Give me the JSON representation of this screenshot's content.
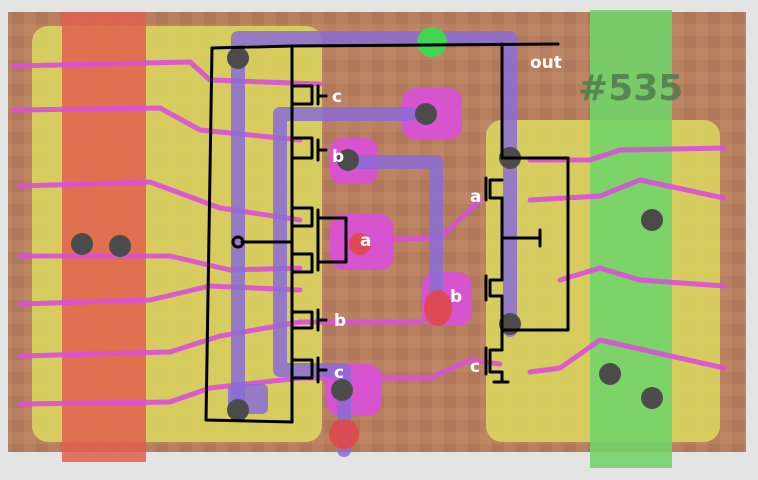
{
  "labels": {
    "output": "out",
    "part_number": "#535",
    "left_c_top": "c",
    "left_b_top": "b",
    "left_a": "a",
    "left_b_bottom": "b",
    "left_c_bottom": "c",
    "right_a": "a",
    "right_b": "b",
    "right_c": "c"
  },
  "colors": {
    "background": "#e4e4e4",
    "die": "#b9805f",
    "diffusion": "#d9d35e",
    "metal": "#d94fd9",
    "polysilicon": "#8a6cd6",
    "power_rail_left": "#e0604f",
    "power_rail_right": "#6fd46a",
    "via": "#4b4b4b",
    "contact_red": "#e04848",
    "contact_green": "#43d452",
    "ink": "#000000"
  }
}
